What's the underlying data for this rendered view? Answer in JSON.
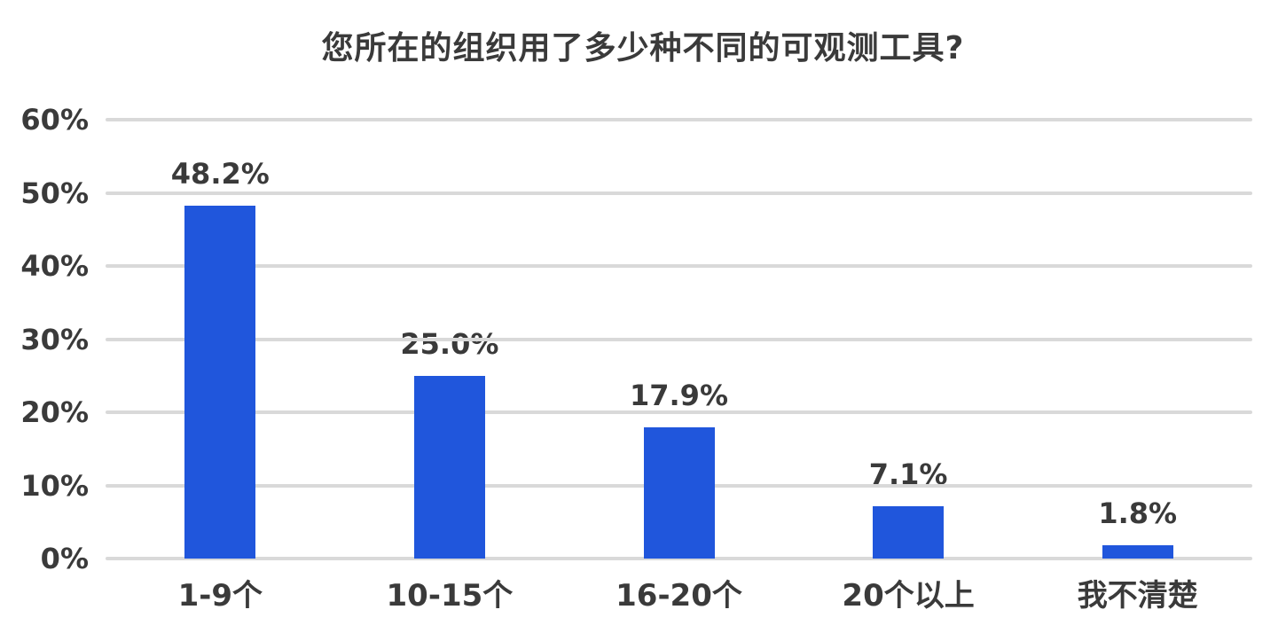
{
  "title": "您所在的组织用了多少种不同的可观测工具?",
  "colors": {
    "bar": "#2056DC",
    "gridline": "#d9d9d9",
    "text": "#3a3a3a",
    "background": "#ffffff"
  },
  "chart_data": {
    "type": "bar",
    "title": "您所在的组织用了多少种不同的可观测工具?",
    "categories": [
      "1-9个",
      "10-15个",
      "16-20个",
      "20个以上",
      "我不清楚"
    ],
    "values": [
      48.2,
      25.0,
      17.9,
      7.1,
      1.8
    ],
    "value_labels": [
      "48.2%",
      "25.0%",
      "17.9%",
      "7.1%",
      "1.8%"
    ],
    "xlabel": "",
    "ylabel": "",
    "ylim": [
      0,
      60
    ],
    "yticks": [
      0,
      10,
      20,
      30,
      40,
      50,
      60
    ],
    "ytick_labels": [
      "0%",
      "10%",
      "20%",
      "30%",
      "40%",
      "50%",
      "60%"
    ],
    "grid": "horizontal-only",
    "legend": "none",
    "bar_color": "#2056DC"
  }
}
